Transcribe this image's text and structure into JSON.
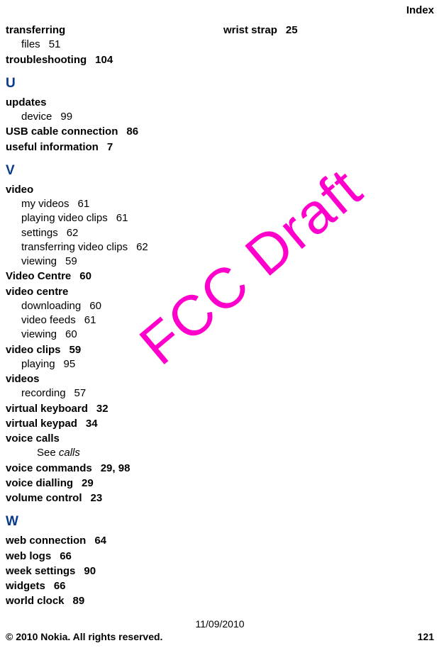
{
  "header": {
    "section": "Index"
  },
  "watermark": {
    "text": "FCC Draft",
    "color": "#ff00cc"
  },
  "colLeft": {
    "transferring": {
      "label": "transferring"
    },
    "transferring_files": {
      "label": "files",
      "page": "51"
    },
    "troubleshooting": {
      "label": "troubleshooting",
      "page": "104"
    },
    "letter_U": "U",
    "updates": {
      "label": "updates"
    },
    "updates_device": {
      "label": "device",
      "page": "99"
    },
    "usb": {
      "label": "USB cable connection",
      "page": "86"
    },
    "useful_info": {
      "label": "useful information",
      "page": "7"
    },
    "letter_V": "V",
    "video": {
      "label": "video"
    },
    "video_myvideos": {
      "label": "my videos",
      "page": "61"
    },
    "video_playing": {
      "label": "playing video clips",
      "page": "61"
    },
    "video_settings": {
      "label": "settings",
      "page": "62"
    },
    "video_transferring": {
      "label": "transferring video clips",
      "page": "62"
    },
    "video_viewing": {
      "label": "viewing",
      "page": "59"
    },
    "video_centre_cap": {
      "label": "Video Centre",
      "page": "60"
    },
    "video_centre": {
      "label": "video centre"
    },
    "vc_downloading": {
      "label": "downloading",
      "page": "60"
    },
    "vc_feeds": {
      "label": "video feeds",
      "page": "61"
    },
    "vc_viewing": {
      "label": "viewing",
      "page": "60"
    },
    "video_clips": {
      "label": "video clips",
      "page": "59"
    },
    "vclips_playing": {
      "label": "playing",
      "page": "95"
    },
    "videos": {
      "label": "videos"
    },
    "videos_recording": {
      "label": "recording",
      "page": "57"
    },
    "vkeyboard": {
      "label": "virtual keyboard",
      "page": "32"
    },
    "vkeypad": {
      "label": "virtual keypad",
      "page": "34"
    },
    "voice_calls": {
      "label": "voice calls"
    },
    "voice_calls_see": {
      "prefix": "See ",
      "ref": "calls"
    },
    "voice_commands": {
      "label": "voice commands",
      "page": "29, 98"
    },
    "voice_dialling": {
      "label": "voice dialling",
      "page": "29"
    },
    "volume": {
      "label": "volume control",
      "page": "23"
    },
    "letter_W": "W",
    "web_conn": {
      "label": "web connection",
      "page": "64"
    },
    "web_logs": {
      "label": "web logs",
      "page": "66"
    },
    "week_settings": {
      "label": "week settings",
      "page": "90"
    },
    "widgets": {
      "label": "widgets",
      "page": "66"
    },
    "world_clock": {
      "label": "world clock",
      "page": "89"
    }
  },
  "colRight": {
    "wrist_strap": {
      "label": "wrist strap",
      "page": "25"
    }
  },
  "footer": {
    "date": "11/09/2010",
    "copyright": "© 2010 Nokia. All rights reserved.",
    "pagenum": "121"
  }
}
